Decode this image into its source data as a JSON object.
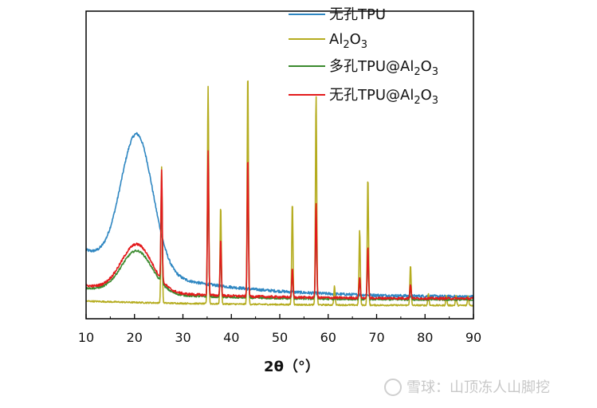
{
  "chart_data": {
    "type": "line",
    "title": "",
    "xlabel": "2θ（°）",
    "ylabel": "",
    "xlim": [
      10,
      90
    ],
    "xticks": [
      10,
      20,
      30,
      40,
      50,
      60,
      70,
      80,
      90
    ],
    "yaxis_visible": false,
    "grid": false,
    "legend_position": "top-right",
    "series": [
      {
        "name": "无孔TPU",
        "color": "#2e86c1",
        "baseline": 0.07,
        "halo": {
          "center": 20.5,
          "height": 0.58,
          "width": 3.3
        },
        "tail": {
          "amplitude": 0.2,
          "decay": 20
        },
        "peaks": [],
        "noise": 0.006
      },
      {
        "name": "Al2O3",
        "color": "#b5ac1f",
        "baseline": 0.035,
        "halo": {
          "center": 20,
          "height": 0.0,
          "width": 3.0
        },
        "tail": {
          "amplitude": 0.02,
          "decay": 30
        },
        "peaks": [
          {
            "x": 25.6,
            "h": 0.58
          },
          {
            "x": 35.2,
            "h": 0.93
          },
          {
            "x": 37.8,
            "h": 0.42
          },
          {
            "x": 43.4,
            "h": 1.0
          },
          {
            "x": 52.6,
            "h": 0.44
          },
          {
            "x": 57.5,
            "h": 0.9
          },
          {
            "x": 61.3,
            "h": 0.08
          },
          {
            "x": 66.5,
            "h": 0.32
          },
          {
            "x": 68.2,
            "h": 0.55
          },
          {
            "x": 77.0,
            "h": 0.17
          },
          {
            "x": 80.7,
            "h": 0.05
          },
          {
            "x": 84.4,
            "h": 0.04
          },
          {
            "x": 86.4,
            "h": 0.04
          },
          {
            "x": 88.9,
            "h": 0.04
          }
        ],
        "noise": 0.003
      },
      {
        "name": "多孔TPU@Al2O3",
        "color": "#3a8a2e",
        "baseline": 0.06,
        "halo": {
          "center": 20.5,
          "height": 0.18,
          "width": 3.2
        },
        "tail": {
          "amplitude": 0.05,
          "decay": 20
        },
        "peaks": [
          {
            "x": 25.6,
            "h": 0.44
          },
          {
            "x": 35.2,
            "h": 0.6
          },
          {
            "x": 37.8,
            "h": 0.22
          },
          {
            "x": 43.4,
            "h": 0.58
          },
          {
            "x": 52.6,
            "h": 0.11
          },
          {
            "x": 57.5,
            "h": 0.38
          },
          {
            "x": 66.5,
            "h": 0.08
          },
          {
            "x": 68.2,
            "h": 0.2
          },
          {
            "x": 77.0,
            "h": 0.06
          }
        ],
        "noise": 0.004
      },
      {
        "name": "无孔TPU@Al2O3",
        "color": "#e31a1c",
        "baseline": 0.065,
        "halo": {
          "center": 20.5,
          "height": 0.2,
          "width": 3.2
        },
        "tail": {
          "amplitude": 0.055,
          "decay": 20
        },
        "peaks": [
          {
            "x": 25.6,
            "h": 0.47
          },
          {
            "x": 35.2,
            "h": 0.62
          },
          {
            "x": 37.8,
            "h": 0.24
          },
          {
            "x": 43.4,
            "h": 0.6
          },
          {
            "x": 52.6,
            "h": 0.12
          },
          {
            "x": 57.5,
            "h": 0.41
          },
          {
            "x": 66.5,
            "h": 0.09
          },
          {
            "x": 68.2,
            "h": 0.22
          },
          {
            "x": 77.0,
            "h": 0.06
          }
        ],
        "noise": 0.005
      }
    ]
  },
  "watermark": "雪球：山顶冻人山脚挖"
}
